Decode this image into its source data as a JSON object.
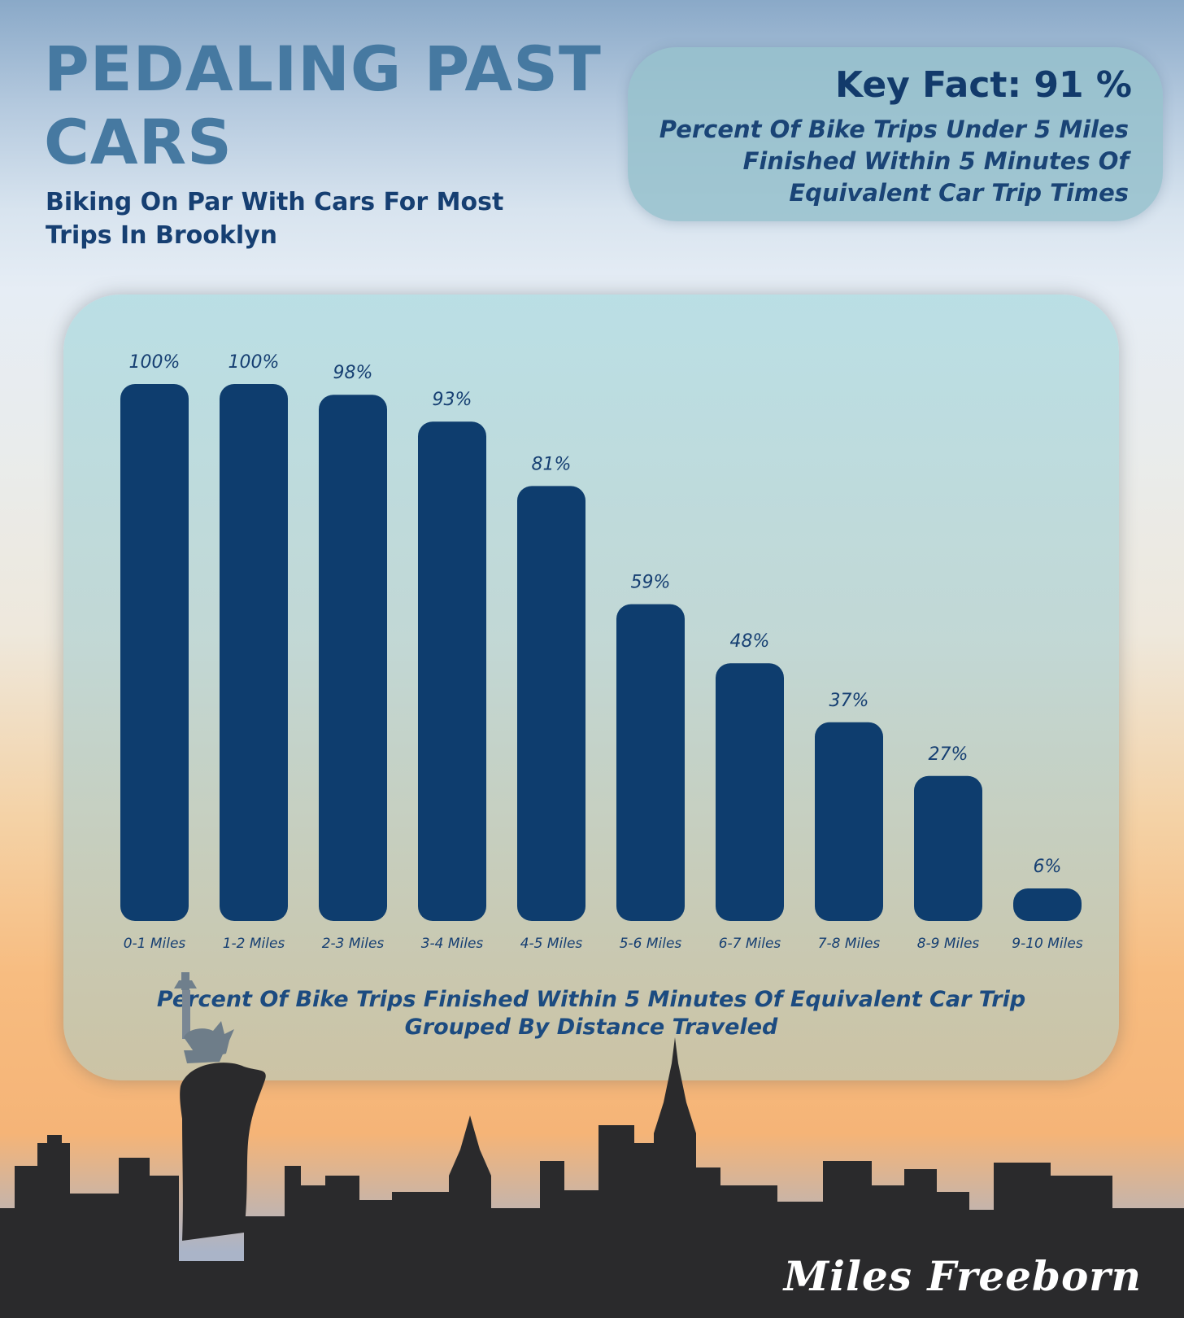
{
  "header": {
    "title_line1": "PEDALING PAST",
    "title_line2": "CARS",
    "subtitle_line1": "Biking On Par With Cars For Most",
    "subtitle_line2": "Trips In Brooklyn"
  },
  "key_fact": {
    "heading": "Key Fact:  91 %",
    "line1": "Percent Of Bike Trips Under 5 Miles",
    "line2": "Finished Within 5 Minutes Of",
    "line3": "Equivalent Car Trip Times"
  },
  "chart_data": {
    "type": "bar",
    "categories": [
      "0-1 Miles",
      "1-2 Miles",
      "2-3 Miles",
      "3-4 Miles",
      "4-5 Miles",
      "5-6 Miles",
      "6-7 Miles",
      "7-8 Miles",
      "8-9 Miles",
      "9-10 Miles"
    ],
    "values": [
      100,
      100,
      98,
      93,
      81,
      59,
      48,
      37,
      27,
      6
    ],
    "value_labels": [
      "100%",
      "100%",
      "98%",
      "93%",
      "81%",
      "59%",
      "48%",
      "37%",
      "27%",
      "6%"
    ],
    "caption_line1": "Percent Of Bike Trips Finished Within 5 Minutes Of Equivalent Car Trip",
    "caption_line2": "Grouped By Distance Traveled",
    "ylim": [
      0,
      100
    ],
    "grid": false,
    "bar_color": "#0e3d6e"
  },
  "signature": "Miles Freeborn",
  "colors": {
    "title": "#4679a1",
    "dark_navy": "#123a6b",
    "skyline": "#2b2b2b"
  }
}
